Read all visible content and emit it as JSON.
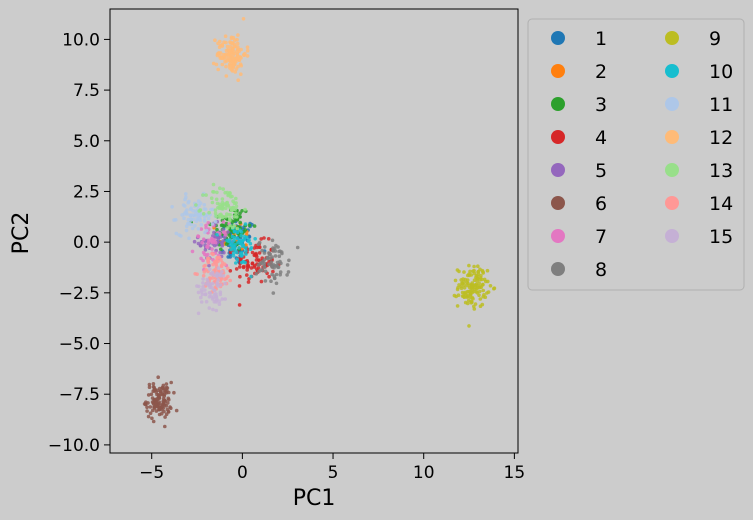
{
  "chart_data": {
    "type": "scatter",
    "title": "",
    "xlabel": "PC1",
    "ylabel": "PC2",
    "xlim": [
      -7.3,
      15.2
    ],
    "ylim": [
      -10.4,
      11.5
    ],
    "xticks": [
      -5,
      0,
      5,
      10,
      15
    ],
    "yticks": [
      -10.0,
      -7.5,
      -5.0,
      -2.5,
      0.0,
      2.5,
      5.0,
      7.5,
      10.0
    ],
    "xtick_labels": [
      "−5",
      "0",
      "5",
      "10",
      "15"
    ],
    "ytick_labels": [
      "−10.0",
      "−7.5",
      "−5.0",
      "−2.5",
      "0.0",
      "2.5",
      "5.0",
      "7.5",
      "10.0"
    ],
    "grid": false,
    "legend": {
      "placement": "outside-right",
      "columns": 2
    },
    "series": [
      {
        "name": "1",
        "color": "#1f77b4",
        "center": [
          -0.3,
          0.0
        ],
        "spread": [
          0.55,
          0.6
        ],
        "count": 70
      },
      {
        "name": "2",
        "color": "#ff7f0e",
        "center": [
          -0.4,
          0.2
        ],
        "spread": [
          0.45,
          0.45
        ],
        "count": 20
      },
      {
        "name": "3",
        "color": "#2ca02c",
        "center": [
          -0.6,
          0.7
        ],
        "spread": [
          0.55,
          0.6
        ],
        "count": 80
      },
      {
        "name": "4",
        "color": "#d62728",
        "center": [
          0.7,
          -1.0
        ],
        "spread": [
          0.55,
          0.5
        ],
        "count": 90
      },
      {
        "name": "5",
        "color": "#9467bd",
        "center": [
          -1.5,
          0.0
        ],
        "spread": [
          0.45,
          0.5
        ],
        "count": 50
      },
      {
        "name": "6",
        "color": "#8c564b",
        "center": [
          -4.6,
          -7.8
        ],
        "spread": [
          0.35,
          0.45
        ],
        "count": 120
      },
      {
        "name": "7",
        "color": "#e377c2",
        "center": [
          -1.7,
          -0.1
        ],
        "spread": [
          0.45,
          0.5
        ],
        "count": 50
      },
      {
        "name": "8",
        "color": "#7f7f7f",
        "center": [
          1.7,
          -1.0
        ],
        "spread": [
          0.45,
          0.55
        ],
        "count": 70
      },
      {
        "name": "9",
        "color": "#bcbd22",
        "center": [
          12.7,
          -2.2
        ],
        "spread": [
          0.4,
          0.5
        ],
        "count": 130
      },
      {
        "name": "10",
        "color": "#17becf",
        "center": [
          -0.2,
          -0.2
        ],
        "spread": [
          0.5,
          0.5
        ],
        "count": 60
      },
      {
        "name": "11",
        "color": "#aec7e8",
        "center": [
          -2.6,
          1.3
        ],
        "spread": [
          0.5,
          0.45
        ],
        "count": 90
      },
      {
        "name": "12",
        "color": "#ffbb78",
        "center": [
          -0.6,
          9.3
        ],
        "spread": [
          0.4,
          0.5
        ],
        "count": 130
      },
      {
        "name": "13",
        "color": "#98df8a",
        "center": [
          -1.0,
          1.7
        ],
        "spread": [
          0.5,
          0.55
        ],
        "count": 80
      },
      {
        "name": "14",
        "color": "#ff9896",
        "center": [
          -1.4,
          -1.5
        ],
        "spread": [
          0.45,
          0.45
        ],
        "count": 70
      },
      {
        "name": "15",
        "color": "#c5b0d5",
        "center": [
          -1.6,
          -2.2
        ],
        "spread": [
          0.4,
          0.55
        ],
        "count": 70
      }
    ]
  }
}
